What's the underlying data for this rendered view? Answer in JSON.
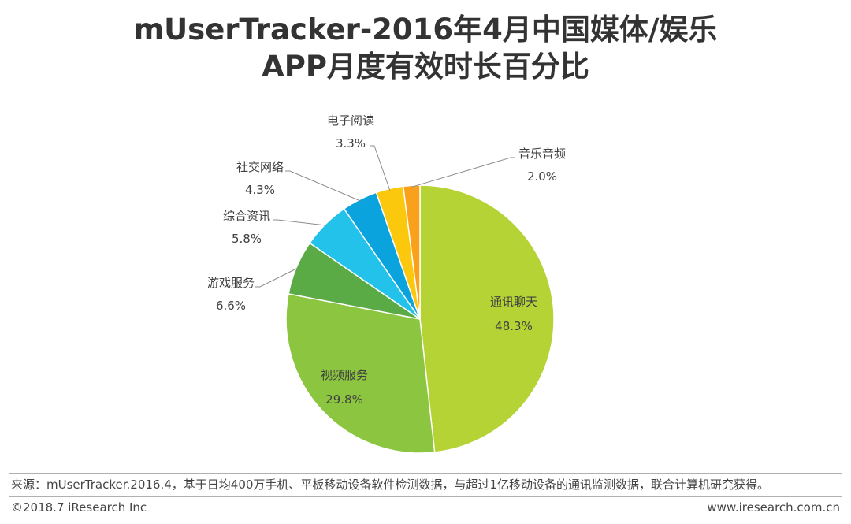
{
  "title": {
    "line1": "mUserTracker-2016年4月中国媒体/娱乐",
    "line2": "APP月度有效时长百分比"
  },
  "chart_data": {
    "type": "pie",
    "title": "mUserTracker-2016年4月中国媒体/娱乐APP月度有效时长百分比",
    "slices": [
      {
        "label": "通讯聊天",
        "value": 48.3,
        "value_label": "48.3%",
        "color": "#b5d335"
      },
      {
        "label": "视频服务",
        "value": 29.8,
        "value_label": "29.8%",
        "color": "#8cc540"
      },
      {
        "label": "游戏服务",
        "value": 6.6,
        "value_label": "6.6%",
        "color": "#5aaa46"
      },
      {
        "label": "综合资讯",
        "value": 5.8,
        "value_label": "5.8%",
        "color": "#23c2ea"
      },
      {
        "label": "社交网络",
        "value": 4.3,
        "value_label": "4.3%",
        "color": "#0aa3dd"
      },
      {
        "label": "电子阅读",
        "value": 3.3,
        "value_label": "3.3%",
        "color": "#fbc80e"
      },
      {
        "label": "音乐音频",
        "value": 2.0,
        "value_label": "2.0%",
        "color": "#f9a11b"
      }
    ],
    "start_angle": "12 o'clock, clockwise"
  },
  "footer": {
    "source": "来源：mUserTracker.2016.4，基于日均400万手机、平板移动设备软件检测数据，与超过1亿移动设备的通讯监测数据，联合计算机研究获得。",
    "copyright": "©2018.7 iResearch Inc",
    "website": "www.iresearch.com.cn"
  }
}
